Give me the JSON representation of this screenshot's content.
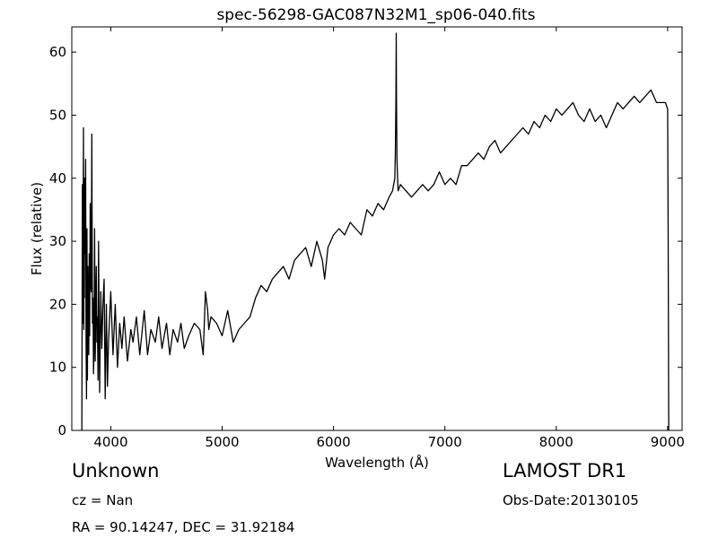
{
  "chart_data": {
    "type": "line",
    "title": "spec-56298-GAC087N32M1_sp06-040.fits",
    "xlabel": "Wavelength (Å)",
    "ylabel": "Flux (relative)",
    "xlim": [
      3650,
      9130
    ],
    "ylim": [
      0,
      64
    ],
    "xticks": [
      4000,
      5000,
      6000,
      7000,
      8000,
      9000
    ],
    "yticks": [
      0,
      10,
      20,
      30,
      40,
      50,
      60
    ],
    "grid": false,
    "line_color": "#000000",
    "series": [
      {
        "x": [
          3740,
          3745,
          3750,
          3752,
          3755,
          3758,
          3760,
          3763,
          3766,
          3770,
          3774,
          3778,
          3782,
          3786,
          3790,
          3794,
          3798,
          3802,
          3806,
          3810,
          3815,
          3820,
          3825,
          3830,
          3835,
          3840,
          3845,
          3850,
          3855,
          3860,
          3865,
          3870,
          3875,
          3880,
          3885,
          3890,
          3900,
          3910,
          3920,
          3930,
          3940,
          3950,
          3960,
          3970,
          3980,
          4000,
          4020,
          4040,
          4060,
          4080,
          4100,
          4120,
          4150,
          4180,
          4200,
          4230,
          4260,
          4300,
          4330,
          4360,
          4400,
          4430,
          4460,
          4500,
          4530,
          4560,
          4600,
          4630,
          4660,
          4700,
          4750,
          4800,
          4830,
          4850,
          4870,
          4880,
          4900,
          4950,
          5000,
          5050,
          5100,
          5150,
          5200,
          5250,
          5300,
          5350,
          5400,
          5450,
          5500,
          5550,
          5600,
          5650,
          5700,
          5750,
          5800,
          5850,
          5900,
          5920,
          5950,
          6000,
          6050,
          6100,
          6150,
          6200,
          6250,
          6300,
          6350,
          6400,
          6450,
          6500,
          6530,
          6550,
          6555,
          6560,
          6563,
          6566,
          6570,
          6575,
          6580,
          6600,
          6650,
          6700,
          6750,
          6800,
          6850,
          6900,
          6950,
          7000,
          7050,
          7100,
          7150,
          7200,
          7250,
          7300,
          7350,
          7400,
          7450,
          7500,
          7550,
          7600,
          7650,
          7700,
          7750,
          7800,
          7850,
          7900,
          7950,
          8000,
          8050,
          8100,
          8150,
          8200,
          8250,
          8300,
          8350,
          8400,
          8450,
          8500,
          8550,
          8600,
          8650,
          8700,
          8750,
          8800,
          8850,
          8900,
          8950,
          8980,
          9000,
          9005,
          9010
        ],
        "y": [
          0,
          39,
          17,
          34,
          48,
          16,
          36,
          21,
          40,
          28,
          43,
          14,
          5,
          32,
          8,
          26,
          18,
          12,
          28,
          15,
          36,
          23,
          22,
          47,
          17,
          21,
          9,
          13,
          32,
          11,
          21,
          26,
          14,
          18,
          8,
          30,
          6,
          22,
          13,
          20,
          24,
          5,
          20,
          7,
          14,
          22,
          12,
          20,
          10,
          17,
          13,
          18,
          11,
          16,
          14,
          18,
          12,
          19,
          12,
          16,
          14,
          18,
          13,
          17,
          12,
          16,
          14,
          17,
          13,
          15,
          17,
          16,
          12,
          22,
          19,
          16,
          18,
          17,
          15,
          19,
          14,
          16,
          17,
          18,
          21,
          23,
          22,
          24,
          25,
          26,
          24,
          27,
          28,
          29,
          26,
          30,
          27,
          24,
          29,
          31,
          32,
          31,
          33,
          32,
          31,
          35,
          34,
          36,
          35,
          37,
          38,
          40,
          44,
          52,
          63,
          52,
          43,
          40,
          38,
          39,
          38,
          37,
          38,
          39,
          38,
          39,
          41,
          39,
          40,
          39,
          42,
          42,
          43,
          44,
          43,
          45,
          46,
          44,
          45,
          46,
          47,
          48,
          47,
          49,
          48,
          50,
          49,
          51,
          50,
          51,
          52,
          50,
          49,
          51,
          49,
          50,
          48,
          50,
          52,
          51,
          52,
          53,
          52,
          53,
          54,
          52,
          52,
          52,
          51,
          30,
          0
        ]
      }
    ]
  },
  "annotations": {
    "object_class": "Unknown",
    "survey": "LAMOST DR1",
    "cz": "cz = Nan",
    "obs_date": "Obs-Date:20130105",
    "radec": "RA = 90.14247, DEC = 31.92184"
  }
}
